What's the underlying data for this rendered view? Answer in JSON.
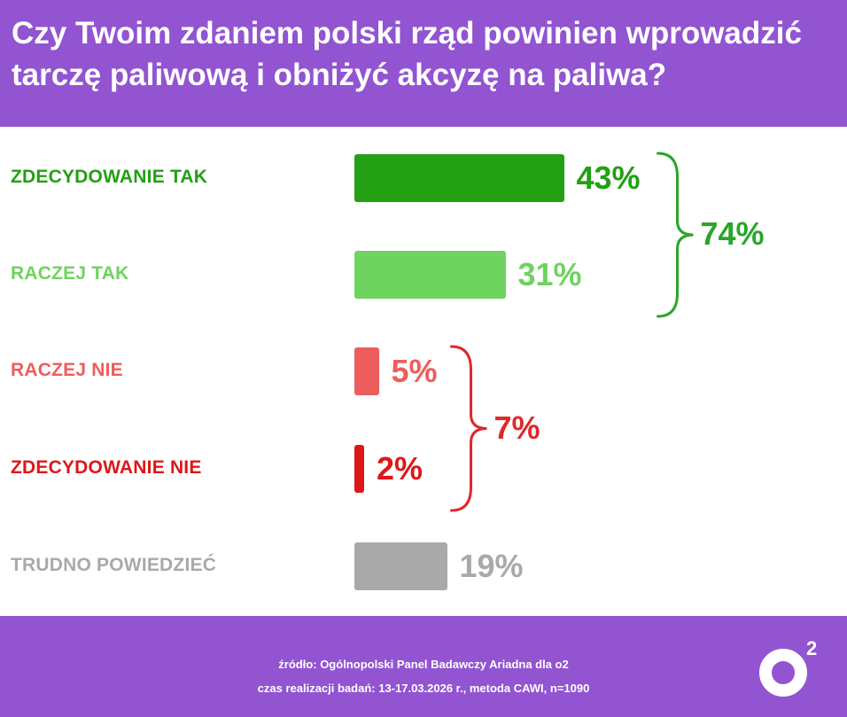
{
  "header": {
    "title_line1": "Czy Twoim zdaniem polski rząd powinien wprowadzić",
    "title_line2": "tarczę paliwową i obniżyć akcyzę na paliwa?"
  },
  "chart_data": {
    "type": "bar",
    "orientation": "horizontal",
    "title": "Czy Twoim zdaniem polski rząd powinien wprowadzić tarczę paliwową i obniżyć akcyzę na paliwa?",
    "categories": [
      "ZDECYDOWANIE TAK",
      "RACZEJ TAK",
      "RACZEJ NIE",
      "ZDECYDOWANIE NIE",
      "TRUDNO POWIEDZIEĆ"
    ],
    "values": [
      43,
      31,
      5,
      2,
      19
    ],
    "value_labels": [
      "43%",
      "31%",
      "5%",
      "2%",
      "19%"
    ],
    "colors": [
      "#23a013",
      "#6fd35f",
      "#ee5d5d",
      "#dd1717",
      "#a9a9a9"
    ],
    "groups": [
      {
        "members": [
          0,
          1
        ],
        "total_label": "74%",
        "color": "#2aa52a"
      },
      {
        "members": [
          2,
          3
        ],
        "total_label": "7%",
        "color": "#e0282a"
      }
    ],
    "grid": false,
    "legend": "none"
  },
  "footer": {
    "source": "źródło: Ogólnopolski Panel Badawczy Ariadna dla o2",
    "method": "czas realizacji badań: 13-17.03.2026 r., metoda CAWI, n=1090",
    "brand_main": "o",
    "brand_sup": "2"
  },
  "colors": {
    "accent_purple": "#9254d1",
    "white": "#ffffff"
  }
}
